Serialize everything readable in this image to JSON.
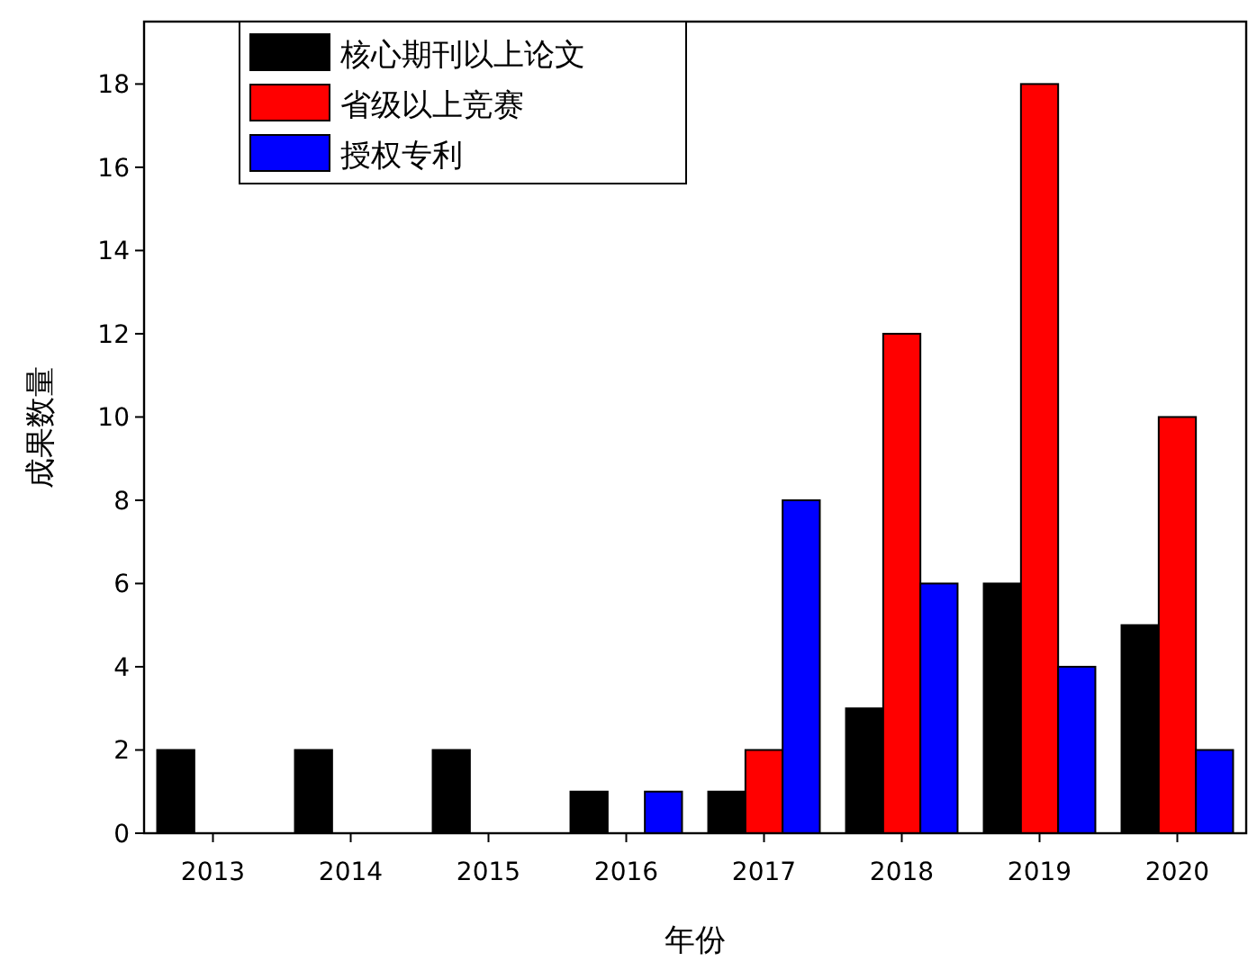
{
  "chart_data": {
    "type": "bar",
    "xlabel": "年份",
    "ylabel": "成果数量",
    "categories": [
      "2013",
      "2014",
      "2015",
      "2016",
      "2017",
      "2018",
      "2019",
      "2020"
    ],
    "series": [
      {
        "name": "核心期刊以上论文",
        "color": "#000000",
        "values": [
          2,
          2,
          2,
          1,
          1,
          3,
          6,
          5
        ]
      },
      {
        "name": "省级以上竞赛",
        "color": "#ff0000",
        "values": [
          0,
          0,
          0,
          0,
          2,
          12,
          18,
          10
        ]
      },
      {
        "name": "授权专利",
        "color": "#0000ff",
        "values": [
          0,
          0,
          0,
          1,
          8,
          6,
          4,
          2
        ]
      }
    ],
    "ylim": [
      0,
      19.5
    ],
    "yticks": [
      0,
      2,
      4,
      6,
      8,
      10,
      12,
      14,
      16,
      18
    ],
    "grid": false,
    "legend": "top left"
  }
}
